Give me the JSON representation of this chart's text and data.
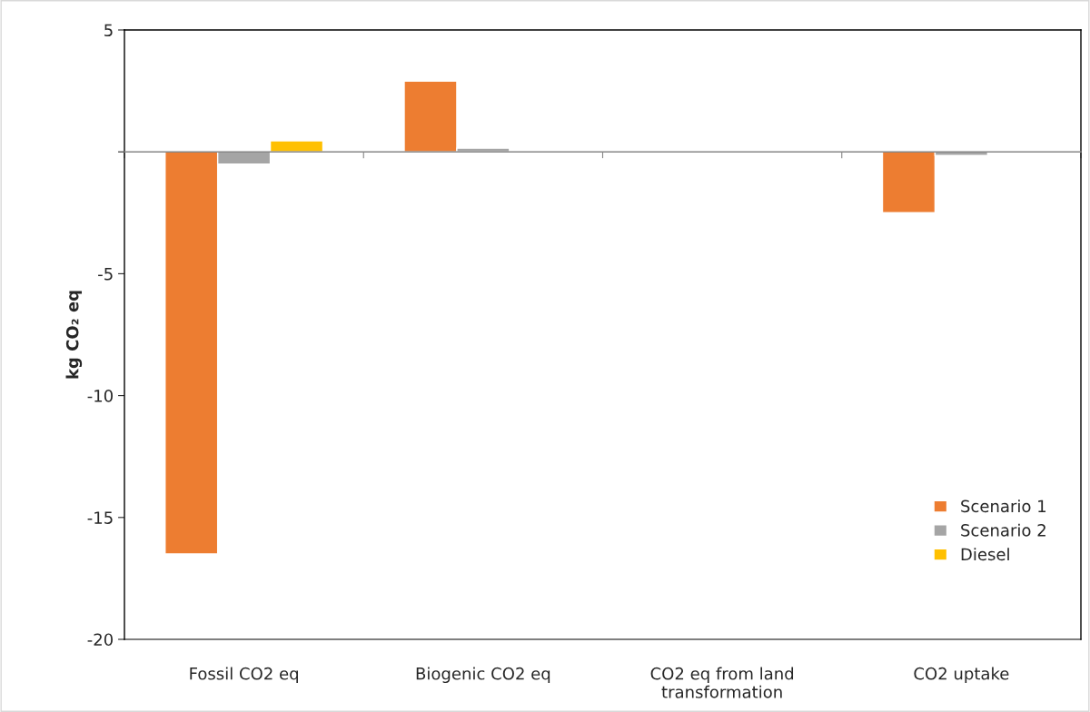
{
  "chart_data": {
    "type": "bar",
    "ylabel": "kg CO₂ eq",
    "categories": [
      "Fossil CO2 eq",
      "Biogenic CO2 eq",
      "CO2 eq from land transformation",
      "CO2 uptake"
    ],
    "series": [
      {
        "name": "Scenario 1",
        "color": "#ed7d31",
        "values": [
          -16.5,
          2.9,
          -0.05,
          -2.5
        ]
      },
      {
        "name": "Scenario 2",
        "color": "#a5a5a5",
        "values": [
          -0.5,
          0.15,
          null,
          -0.15
        ]
      },
      {
        "name": "Diesel",
        "color": "#ffc000",
        "values": [
          0.45,
          null,
          null,
          null
        ]
      }
    ],
    "ylim": [
      -20,
      5
    ],
    "yticks": [
      -20,
      -15,
      -10,
      -5,
      {
        "value": 0,
        "label": null
      },
      5
    ],
    "ref_lines": [
      {
        "axis": "y",
        "value": 0,
        "color": "#868686"
      }
    ],
    "grid": false,
    "legend": "bottom right"
  }
}
